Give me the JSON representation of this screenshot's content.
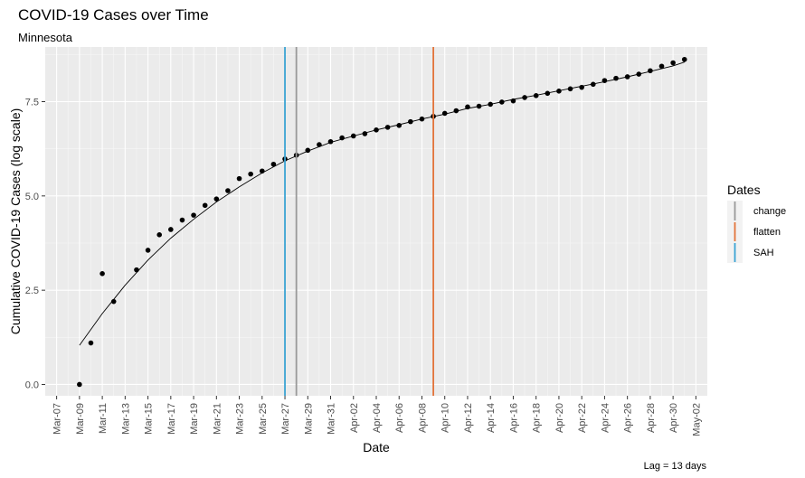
{
  "chart_data": {
    "type": "scatter",
    "title": "COVID-19 Cases over Time",
    "subtitle": "Minnesota",
    "xlabel": "Date",
    "ylabel": "Cumulative COVID-19 Cases (log scale)",
    "caption": "Lag = 13 days",
    "x_ticks": [
      "Mar-07",
      "Mar-09",
      "Mar-11",
      "Mar-13",
      "Mar-15",
      "Mar-17",
      "Mar-19",
      "Mar-21",
      "Mar-23",
      "Mar-25",
      "Mar-27",
      "Mar-29",
      "Mar-31",
      "Apr-02",
      "Apr-04",
      "Apr-06",
      "Apr-08",
      "Apr-10",
      "Apr-12",
      "Apr-14",
      "Apr-16",
      "Apr-18",
      "Apr-20",
      "Apr-22",
      "Apr-24",
      "Apr-26",
      "Apr-28",
      "Apr-30",
      "May-02"
    ],
    "y_ticks": [
      "0.0",
      "2.5",
      "5.0",
      "7.5"
    ],
    "xlim": [
      "2020-03-06",
      "2020-05-03"
    ],
    "ylim": [
      -0.3,
      8.95
    ],
    "grid": true,
    "legend_position": "right",
    "legend": {
      "title": "Dates",
      "entries": [
        {
          "label": "change",
          "color": "#999999"
        },
        {
          "label": "flatten",
          "color": "#e2733a"
        },
        {
          "label": "SAH",
          "color": "#3aa3d3"
        }
      ]
    },
    "vlines": [
      {
        "label": "SAH",
        "date": "2020-03-27",
        "color": "#3aa3d3"
      },
      {
        "label": "change",
        "date": "2020-03-28",
        "color": "#999999"
      },
      {
        "label": "flatten",
        "date": "2020-04-09",
        "color": "#e2733a"
      }
    ],
    "points": [
      {
        "x": "2020-03-09",
        "y": 0.0
      },
      {
        "x": "2020-03-10",
        "y": 1.1
      },
      {
        "x": "2020-03-11",
        "y": 2.94
      },
      {
        "x": "2020-03-12",
        "y": 2.2
      },
      {
        "x": "2020-03-14",
        "y": 3.04
      },
      {
        "x": "2020-03-15",
        "y": 3.56
      },
      {
        "x": "2020-03-16",
        "y": 3.97
      },
      {
        "x": "2020-03-17",
        "y": 4.11
      },
      {
        "x": "2020-03-18",
        "y": 4.36
      },
      {
        "x": "2020-03-19",
        "y": 4.49
      },
      {
        "x": "2020-03-20",
        "y": 4.75
      },
      {
        "x": "2020-03-21",
        "y": 4.92
      },
      {
        "x": "2020-03-22",
        "y": 5.14
      },
      {
        "x": "2020-03-23",
        "y": 5.46
      },
      {
        "x": "2020-03-24",
        "y": 5.58
      },
      {
        "x": "2020-03-25",
        "y": 5.66
      },
      {
        "x": "2020-03-26",
        "y": 5.84
      },
      {
        "x": "2020-03-27",
        "y": 5.98
      },
      {
        "x": "2020-03-28",
        "y": 6.08
      },
      {
        "x": "2020-03-29",
        "y": 6.21
      },
      {
        "x": "2020-03-30",
        "y": 6.36
      },
      {
        "x": "2020-03-31",
        "y": 6.44
      },
      {
        "x": "2020-04-01",
        "y": 6.54
      },
      {
        "x": "2020-04-02",
        "y": 6.59
      },
      {
        "x": "2020-04-03",
        "y": 6.65
      },
      {
        "x": "2020-04-04",
        "y": 6.75
      },
      {
        "x": "2020-04-05",
        "y": 6.82
      },
      {
        "x": "2020-04-06",
        "y": 6.87
      },
      {
        "x": "2020-04-07",
        "y": 6.97
      },
      {
        "x": "2020-04-08",
        "y": 7.04
      },
      {
        "x": "2020-04-09",
        "y": 7.11
      },
      {
        "x": "2020-04-10",
        "y": 7.19
      },
      {
        "x": "2020-04-11",
        "y": 7.26
      },
      {
        "x": "2020-04-12",
        "y": 7.36
      },
      {
        "x": "2020-04-13",
        "y": 7.38
      },
      {
        "x": "2020-04-14",
        "y": 7.43
      },
      {
        "x": "2020-04-15",
        "y": 7.49
      },
      {
        "x": "2020-04-16",
        "y": 7.52
      },
      {
        "x": "2020-04-17",
        "y": 7.61
      },
      {
        "x": "2020-04-18",
        "y": 7.66
      },
      {
        "x": "2020-04-19",
        "y": 7.72
      },
      {
        "x": "2020-04-20",
        "y": 7.78
      },
      {
        "x": "2020-04-21",
        "y": 7.84
      },
      {
        "x": "2020-04-22",
        "y": 7.88
      },
      {
        "x": "2020-04-23",
        "y": 7.96
      },
      {
        "x": "2020-04-24",
        "y": 8.06
      },
      {
        "x": "2020-04-25",
        "y": 8.12
      },
      {
        "x": "2020-04-26",
        "y": 8.16
      },
      {
        "x": "2020-04-27",
        "y": 8.23
      },
      {
        "x": "2020-04-28",
        "y": 8.32
      },
      {
        "x": "2020-04-29",
        "y": 8.44
      },
      {
        "x": "2020-04-30",
        "y": 8.53
      },
      {
        "x": "2020-05-01",
        "y": 8.62
      }
    ],
    "fit_line": [
      {
        "x": "2020-03-09",
        "y": 1.04
      },
      {
        "x": "2020-03-11",
        "y": 1.88
      },
      {
        "x": "2020-03-13",
        "y": 2.63
      },
      {
        "x": "2020-03-15",
        "y": 3.3
      },
      {
        "x": "2020-03-17",
        "y": 3.88
      },
      {
        "x": "2020-03-19",
        "y": 4.38
      },
      {
        "x": "2020-03-21",
        "y": 4.84
      },
      {
        "x": "2020-03-23",
        "y": 5.24
      },
      {
        "x": "2020-03-25",
        "y": 5.61
      },
      {
        "x": "2020-03-27",
        "y": 5.93
      },
      {
        "x": "2020-03-29",
        "y": 6.19
      },
      {
        "x": "2020-03-31",
        "y": 6.42
      },
      {
        "x": "2020-04-02",
        "y": 6.59
      },
      {
        "x": "2020-04-04",
        "y": 6.75
      },
      {
        "x": "2020-04-06",
        "y": 6.89
      },
      {
        "x": "2020-04-08",
        "y": 7.04
      },
      {
        "x": "2020-04-10",
        "y": 7.17
      },
      {
        "x": "2020-04-12",
        "y": 7.32
      },
      {
        "x": "2020-04-14",
        "y": 7.43
      },
      {
        "x": "2020-04-16",
        "y": 7.56
      },
      {
        "x": "2020-04-18",
        "y": 7.67
      },
      {
        "x": "2020-04-20",
        "y": 7.79
      },
      {
        "x": "2020-04-22",
        "y": 7.91
      },
      {
        "x": "2020-04-24",
        "y": 8.03
      },
      {
        "x": "2020-04-26",
        "y": 8.16
      },
      {
        "x": "2020-04-28",
        "y": 8.3
      },
      {
        "x": "2020-04-30",
        "y": 8.45
      },
      {
        "x": "2020-05-01",
        "y": 8.55
      }
    ]
  }
}
